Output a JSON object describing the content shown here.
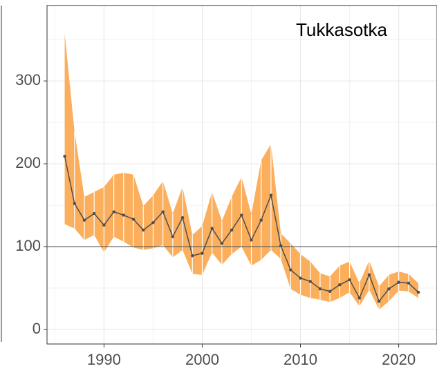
{
  "chart_data": {
    "type": "line",
    "annotation": "Tukkasotka",
    "x": [
      1986,
      1987,
      1988,
      1989,
      1990,
      1991,
      1992,
      1993,
      1994,
      1995,
      1996,
      1997,
      1998,
      1999,
      2000,
      2001,
      2002,
      2003,
      2004,
      2005,
      2006,
      2007,
      2008,
      2009,
      2010,
      2011,
      2012,
      2013,
      2014,
      2015,
      2016,
      2017,
      2018,
      2019,
      2020,
      2021,
      2022
    ],
    "values": [
      209,
      152,
      132,
      140,
      126,
      142,
      138,
      133,
      120,
      129,
      142,
      112,
      135,
      89,
      92,
      122,
      104,
      120,
      138,
      108,
      132,
      162,
      101,
      72,
      62,
      58,
      49,
      46,
      54,
      60,
      38,
      66,
      34,
      49,
      57,
      56,
      45
    ],
    "upper": [
      357,
      239,
      160,
      166,
      172,
      187,
      189,
      187,
      149,
      162,
      179,
      140,
      172,
      114,
      125,
      166,
      131,
      160,
      184,
      139,
      204,
      224,
      116,
      104,
      91,
      82,
      68,
      64,
      77,
      82,
      56,
      83,
      52,
      66,
      70,
      67,
      56
    ],
    "lower": [
      127,
      122,
      108,
      114,
      93,
      112,
      106,
      99,
      96,
      98,
      102,
      87,
      96,
      67,
      66,
      93,
      78,
      91,
      100,
      77,
      84,
      96,
      85,
      49,
      42,
      38,
      36,
      33,
      38,
      45,
      28,
      48,
      24,
      34,
      47,
      46,
      38
    ],
    "color": "#4d4d4d",
    "band_color": "#fbae5c",
    "hline": 100,
    "xlim": [
      1984.2,
      2023.9
    ],
    "ylim": [
      -17.5,
      391
    ],
    "xticks": [
      1990,
      2000,
      2010,
      2020
    ],
    "yticks": [
      0,
      100,
      200,
      300
    ],
    "grid": true
  }
}
